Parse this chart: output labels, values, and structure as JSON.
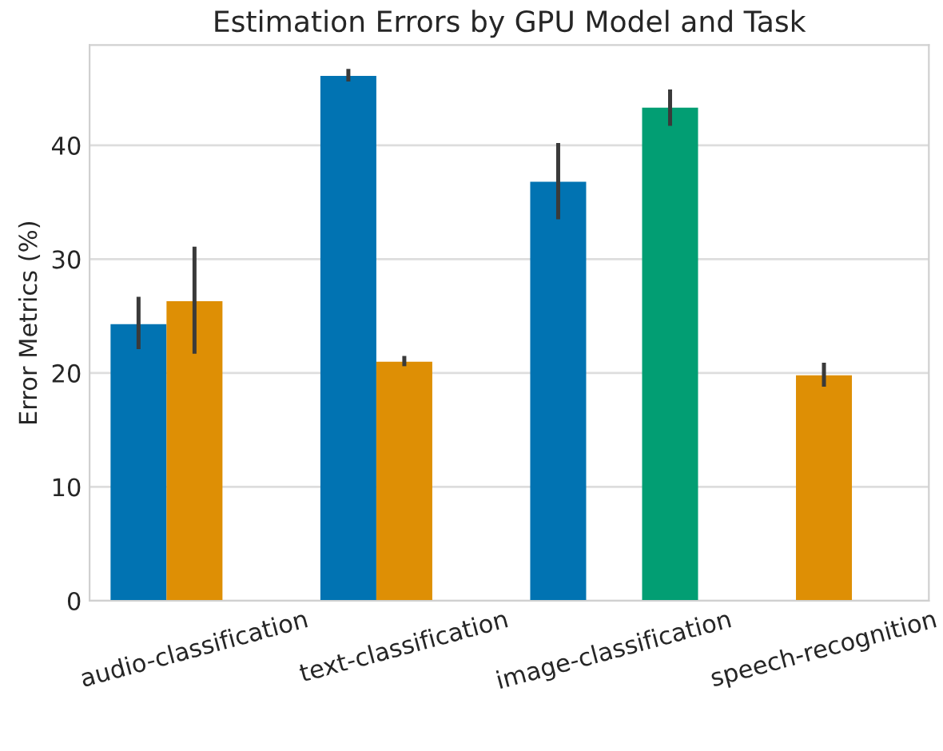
{
  "chart_data": {
    "type": "bar",
    "title": "Estimation Errors by GPU Model and Task",
    "ylabel": "Error Metrics (%)",
    "categories": [
      "audio-classification",
      "text-classification",
      "image-classification",
      "speech-recognition"
    ],
    "series": [
      {
        "color": "#0173b2",
        "values": [
          24.3,
          46.1,
          36.8,
          null
        ],
        "errors": [
          [
            22.1,
            26.7
          ],
          [
            45.6,
            46.7
          ],
          [
            33.5,
            40.2
          ],
          null
        ]
      },
      {
        "color": "#de8f05",
        "values": [
          26.3,
          21.0,
          null,
          19.8
        ],
        "errors": [
          [
            21.7,
            31.1
          ],
          [
            20.6,
            21.5
          ],
          null,
          [
            18.8,
            20.9
          ]
        ]
      },
      {
        "color": "#029e73",
        "values": [
          null,
          null,
          43.3,
          null
        ],
        "errors": [
          null,
          null,
          [
            41.7,
            44.9
          ],
          null
        ]
      }
    ],
    "ylim": [
      0,
      48.8
    ],
    "yticks": [
      0,
      10,
      20,
      30,
      40
    ],
    "grid": "y"
  }
}
